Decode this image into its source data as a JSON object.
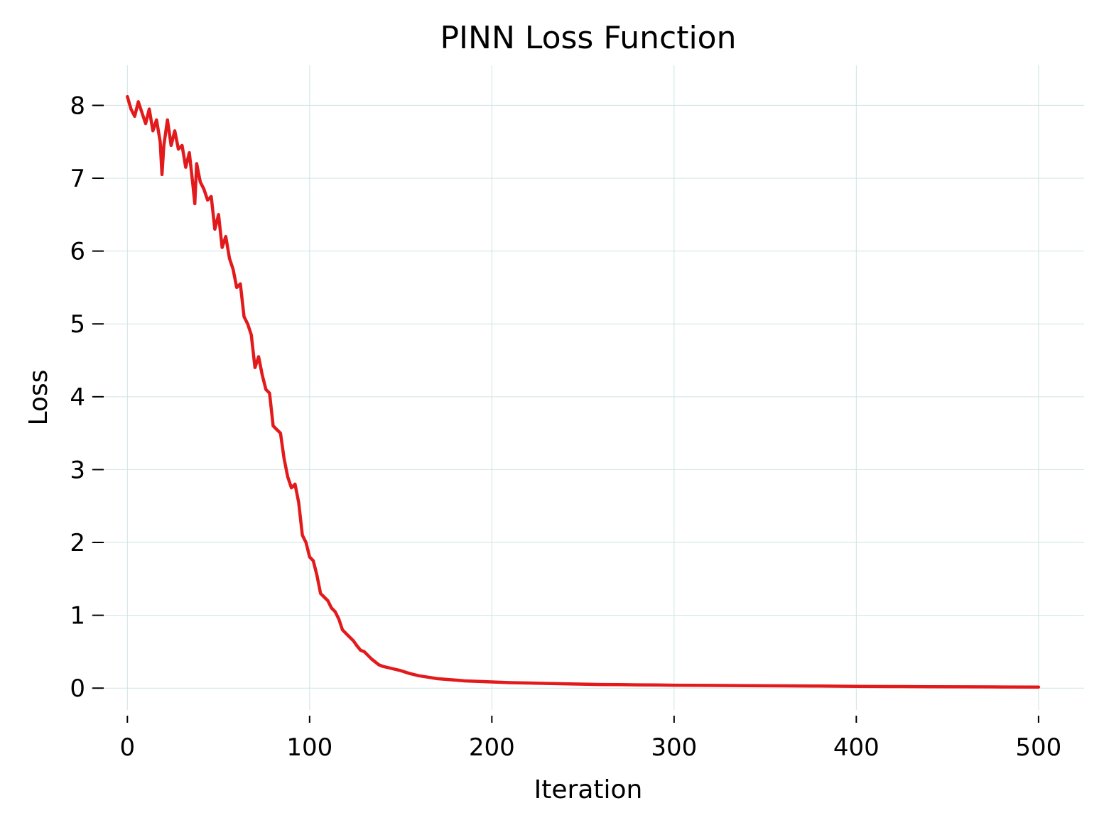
{
  "chart_data": {
    "type": "line",
    "title": "PINN Loss Function",
    "xlabel": "Iteration",
    "ylabel": "Loss",
    "xlim": [
      -20,
      525
    ],
    "ylim": [
      -0.3,
      8.55
    ],
    "xticks": [
      0,
      100,
      200,
      300,
      400,
      500
    ],
    "yticks": [
      0,
      1,
      2,
      3,
      4,
      5,
      6,
      7,
      8
    ],
    "grid": true,
    "legend": "none",
    "color": "#e31a1c",
    "grid_color": "#cfe3e3",
    "series": [
      {
        "x": [
          0,
          2,
          4,
          6,
          8,
          10,
          12,
          14,
          16,
          18,
          19,
          20,
          22,
          24,
          26,
          28,
          30,
          32,
          34,
          36,
          37,
          38,
          40,
          42,
          44,
          46,
          48,
          50,
          52,
          54,
          56,
          58,
          60,
          62,
          64,
          66,
          68,
          70,
          72,
          74,
          76,
          78,
          80,
          82,
          84,
          86,
          88,
          90,
          92,
          94,
          96,
          98,
          100,
          102,
          104,
          106,
          108,
          110,
          112,
          114,
          116,
          118,
          120,
          122,
          124,
          126,
          128,
          130,
          132,
          134,
          136,
          138,
          140,
          145,
          150,
          155,
          160,
          165,
          170,
          175,
          180,
          185,
          190,
          200,
          210,
          220,
          230,
          240,
          250,
          260,
          270,
          280,
          290,
          300,
          320,
          340,
          360,
          380,
          400,
          420,
          440,
          460,
          480,
          500
        ],
        "y": [
          8.12,
          7.95,
          7.85,
          8.05,
          7.9,
          7.75,
          7.95,
          7.65,
          7.8,
          7.5,
          7.05,
          7.45,
          7.8,
          7.45,
          7.65,
          7.4,
          7.45,
          7.15,
          7.35,
          6.9,
          6.65,
          7.2,
          6.95,
          6.85,
          6.7,
          6.75,
          6.3,
          6.5,
          6.05,
          6.2,
          5.9,
          5.75,
          5.5,
          5.55,
          5.1,
          5.0,
          4.85,
          4.4,
          4.55,
          4.3,
          4.1,
          4.05,
          3.6,
          3.55,
          3.5,
          3.15,
          2.9,
          2.75,
          2.8,
          2.55,
          2.1,
          2.0,
          1.8,
          1.75,
          1.55,
          1.3,
          1.25,
          1.2,
          1.1,
          1.05,
          0.95,
          0.8,
          0.75,
          0.7,
          0.65,
          0.58,
          0.52,
          0.5,
          0.45,
          0.4,
          0.36,
          0.32,
          0.3,
          0.27,
          0.24,
          0.2,
          0.17,
          0.15,
          0.13,
          0.12,
          0.11,
          0.1,
          0.095,
          0.085,
          0.075,
          0.07,
          0.065,
          0.06,
          0.055,
          0.05,
          0.048,
          0.045,
          0.043,
          0.04,
          0.037,
          0.034,
          0.031,
          0.028,
          0.025,
          0.022,
          0.02,
          0.018,
          0.016,
          0.015
        ]
      }
    ]
  }
}
